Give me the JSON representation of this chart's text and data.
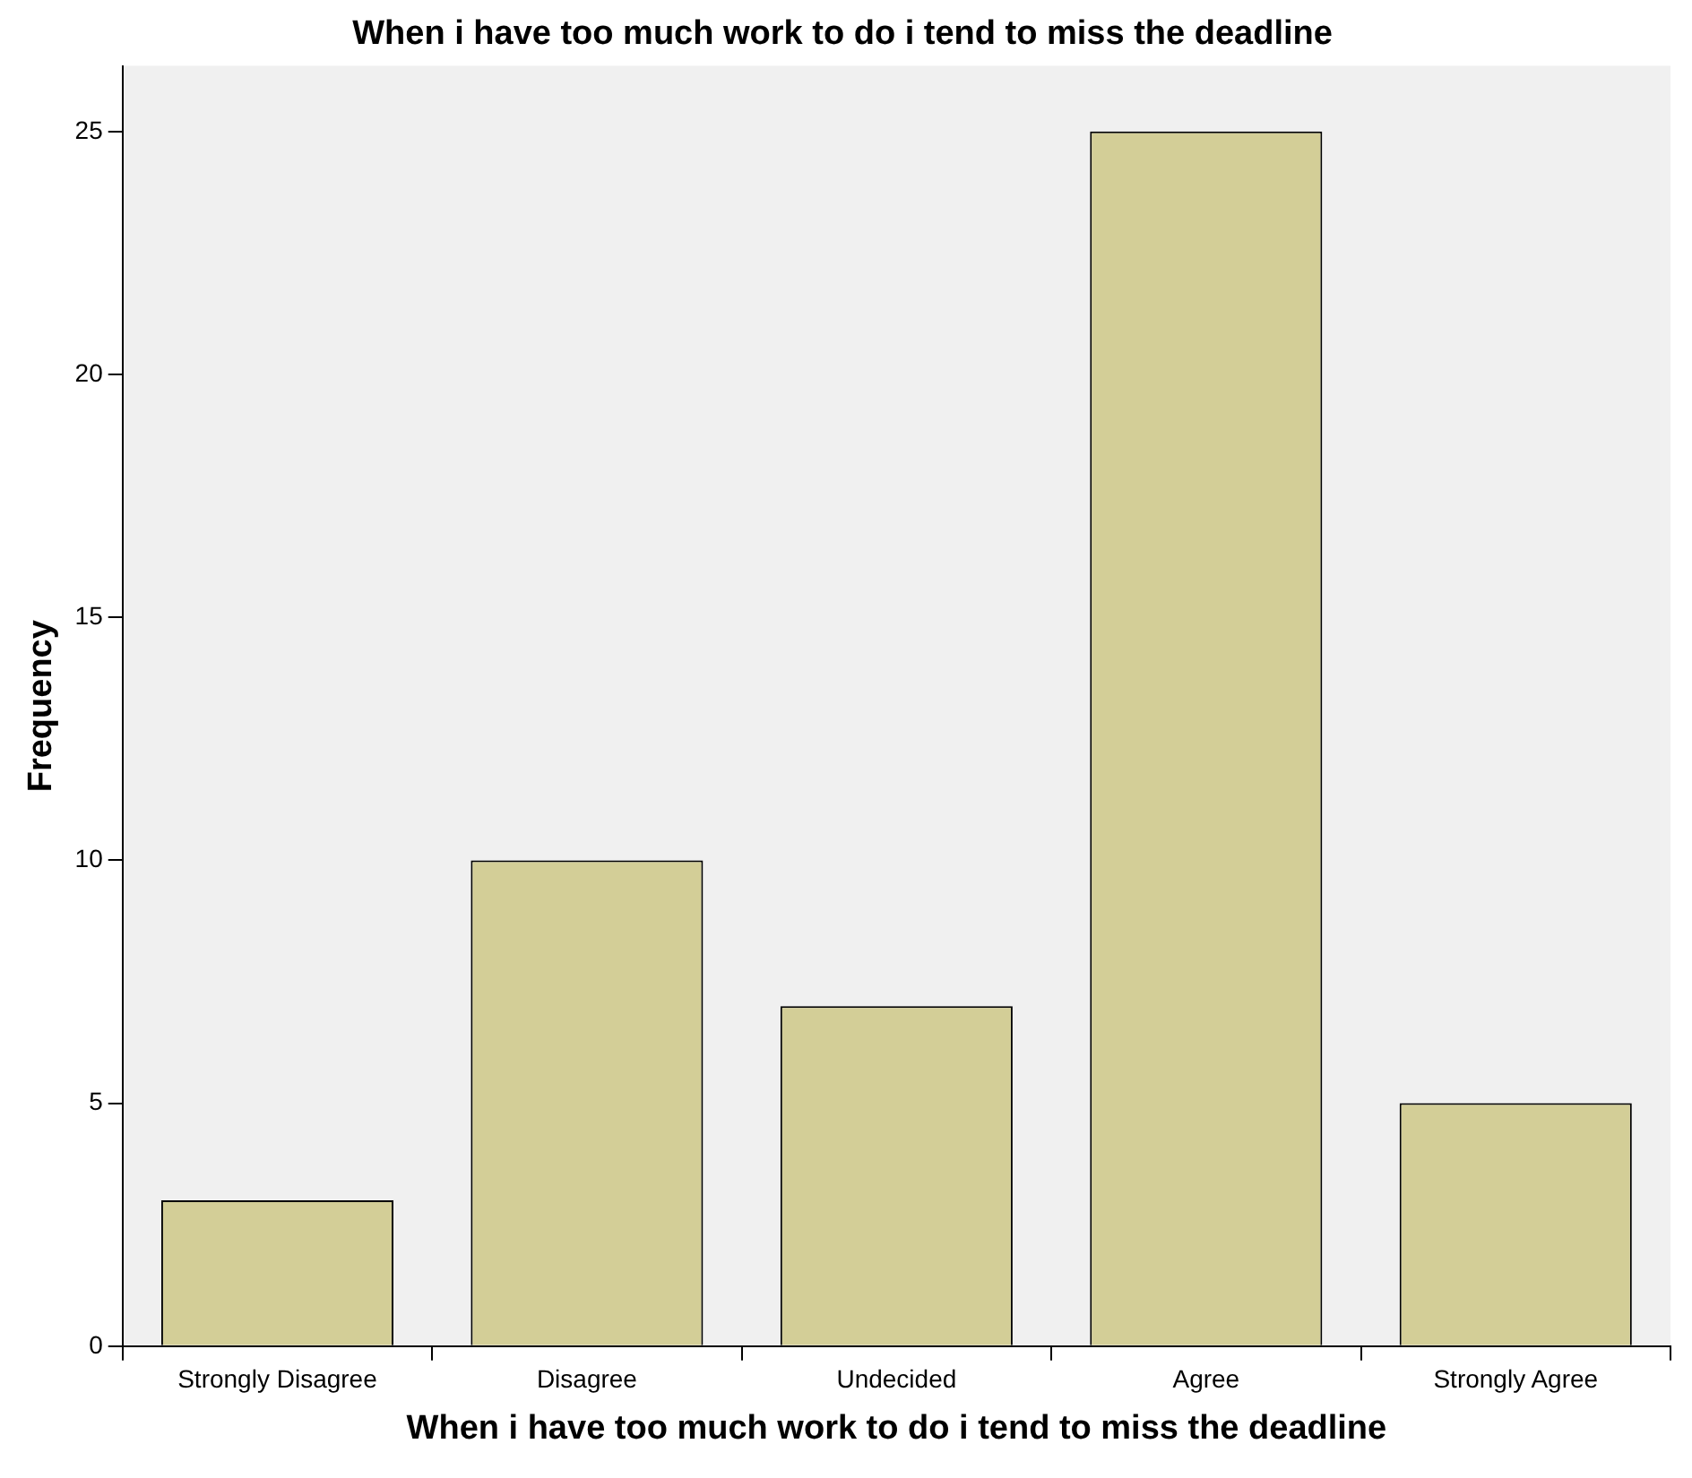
{
  "chart_data": {
    "type": "bar",
    "title": "When i have too much work to do i tend to miss the deadline",
    "xlabel": "When i have too much work to do i tend to miss the deadline",
    "ylabel": "Frequency",
    "categories": [
      "Strongly Disagree",
      "Disagree",
      "Undecided",
      "Agree",
      "Strongly Agree"
    ],
    "values": [
      3,
      10,
      7,
      25,
      5
    ],
    "color": "#d3ce97",
    "ylim": [
      0,
      26.35
    ],
    "yticks": [
      0,
      5,
      10,
      15,
      20,
      25
    ],
    "grid": false,
    "legend": false
  }
}
